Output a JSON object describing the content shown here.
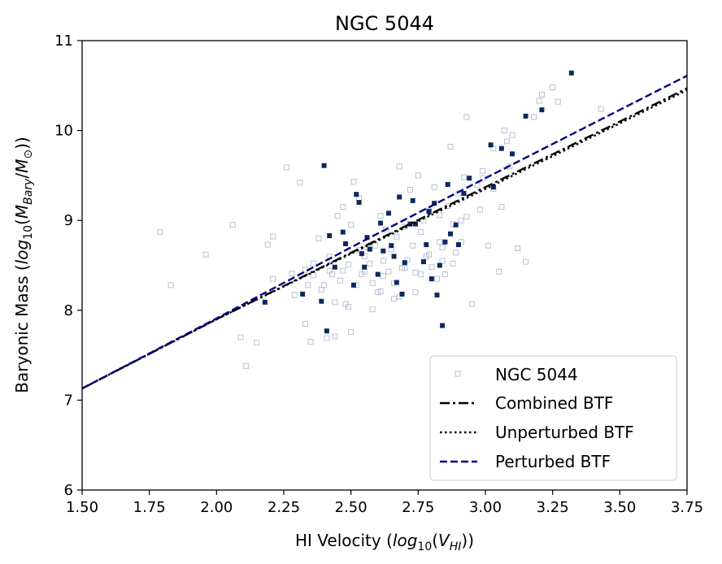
{
  "chart_data": {
    "type": "scatter",
    "title": "NGC 5044",
    "xlabel": "HI Velocity  (",
    "xlabel_math": "log",
    "xlabel_sub": "10",
    "xlabel_var": "V",
    "xlabel_var_sub": "HI",
    "ylabel": "Baryonic Mass (",
    "ylabel_math": "log",
    "ylabel_sub": "10",
    "ylabel_var": "M",
    "ylabel_var_sub": "Bary",
    "ylabel_var2": "M",
    "ylabel_var2_sub": "⊙",
    "xlim": [
      1.5,
      3.75
    ],
    "ylim": [
      6,
      11
    ],
    "xticks": [
      1.5,
      1.75,
      2.0,
      2.25,
      2.5,
      2.75,
      3.0,
      3.25,
      3.5,
      3.75
    ],
    "xtick_labels": [
      "1.50",
      "1.75",
      "2.00",
      "2.25",
      "2.50",
      "2.75",
      "3.00",
      "3.25",
      "3.50",
      "3.75"
    ],
    "yticks": [
      6,
      7,
      8,
      9,
      10,
      11
    ],
    "ytick_labels": [
      "6",
      "7",
      "8",
      "9",
      "10",
      "11"
    ],
    "grid": false,
    "legend_position": "lower-right",
    "legend": [
      {
        "label": "NGC 5044",
        "style": "marker"
      },
      {
        "label": "Combined BTF",
        "style": "dashdot"
      },
      {
        "label": "Unperturbed BTF",
        "style": "dotted"
      },
      {
        "label": "Perturbed BTF",
        "style": "dashed"
      }
    ],
    "colors": {
      "background_points": "#b8c0d4",
      "highlight_points": "#0b2a5e",
      "combined": "#000000",
      "unperturbed": "#000000",
      "perturbed": "#00007f"
    },
    "lines": [
      {
        "name": "Combined BTF",
        "x": [
          1.5,
          2.0,
          2.5,
          3.0,
          3.5,
          3.75
        ],
        "y": [
          7.13,
          7.9,
          8.64,
          9.37,
          10.1,
          10.47
        ]
      },
      {
        "name": "Unperturbed BTF",
        "x": [
          1.5,
          2.0,
          2.5,
          3.0,
          3.5,
          3.75
        ],
        "y": [
          7.13,
          7.9,
          8.63,
          9.35,
          10.08,
          10.45
        ]
      },
      {
        "name": "Perturbed BTF",
        "x": [
          1.5,
          2.0,
          2.5,
          3.0,
          3.5,
          3.75
        ],
        "y": [
          7.13,
          7.91,
          8.7,
          9.47,
          10.23,
          10.61
        ]
      }
    ],
    "series": [
      {
        "name": "NGC 5044 (all)",
        "x": [
          1.79,
          1.83,
          1.96,
          2.06,
          2.09,
          2.11,
          2.15,
          2.19,
          2.21,
          2.26,
          2.29,
          2.31,
          2.33,
          2.35,
          2.36,
          2.38,
          2.39,
          2.41,
          2.42,
          2.43,
          2.44,
          2.45,
          2.46,
          2.47,
          2.48,
          2.49,
          2.5,
          2.51,
          2.52,
          2.53,
          2.54,
          2.55,
          2.56,
          2.57,
          2.58,
          2.59,
          2.6,
          2.61,
          2.62,
          2.63,
          2.64,
          2.65,
          2.66,
          2.67,
          2.68,
          2.69,
          2.7,
          2.71,
          2.72,
          2.73,
          2.74,
          2.75,
          2.76,
          2.77,
          2.78,
          2.79,
          2.8,
          2.81,
          2.82,
          2.83,
          2.84,
          2.85,
          2.86,
          2.87,
          2.88,
          2.89,
          2.9,
          2.91,
          2.92,
          2.93,
          2.95,
          2.97,
          2.99,
          3.01,
          3.03,
          3.05,
          3.07,
          3.09,
          3.1,
          3.12,
          3.15,
          3.18,
          3.2,
          3.21,
          3.25,
          3.27,
          3.43,
          2.33,
          2.36,
          2.4,
          2.44,
          2.47,
          2.5,
          2.53,
          2.58,
          2.62,
          2.66,
          2.7,
          2.74,
          2.79,
          2.83,
          2.88,
          2.93,
          2.98,
          3.03,
          3.08,
          2.21,
          2.28,
          2.34,
          2.42,
          2.49,
          2.55,
          2.61,
          2.68,
          2.76,
          2.84,
          2.91,
          2.99,
          3.06
        ],
        "y": [
          8.87,
          8.28,
          8.62,
          8.95,
          7.7,
          7.38,
          7.64,
          8.73,
          8.35,
          9.59,
          8.17,
          9.42,
          8.45,
          7.65,
          8.52,
          8.8,
          8.23,
          7.69,
          8.6,
          8.4,
          8.09,
          9.05,
          8.33,
          9.15,
          8.07,
          8.51,
          8.95,
          9.43,
          8.28,
          9.25,
          8.4,
          8.6,
          8.7,
          8.52,
          8.3,
          8.72,
          8.2,
          9.05,
          8.55,
          8.9,
          8.43,
          8.68,
          8.3,
          8.82,
          9.6,
          8.47,
          8.93,
          8.56,
          9.34,
          8.72,
          8.42,
          9.5,
          8.87,
          9.0,
          8.6,
          9.11,
          8.48,
          9.37,
          8.35,
          9.06,
          8.7,
          8.4,
          9.16,
          9.82,
          8.96,
          8.64,
          9.3,
          8.76,
          9.48,
          10.15,
          8.07,
          9.39,
          9.55,
          8.72,
          9.8,
          8.43,
          10.0,
          9.6,
          9.95,
          8.69,
          8.54,
          10.15,
          10.33,
          10.4,
          10.48,
          10.32,
          10.24,
          7.85,
          8.39,
          8.28,
          7.71,
          8.44,
          7.76,
          8.67,
          8.01,
          8.38,
          8.13,
          8.47,
          8.2,
          8.62,
          8.76,
          8.52,
          9.04,
          9.12,
          9.35,
          9.88,
          8.82,
          8.41,
          8.28,
          8.44,
          8.04,
          8.43,
          8.21,
          8.15,
          8.4,
          8.55,
          9.0,
          9.47,
          9.15
        ]
      },
      {
        "name": "NGC 5044 (highlighted)",
        "x": [
          2.18,
          2.32,
          2.39,
          2.4,
          2.42,
          2.41,
          2.44,
          2.47,
          2.48,
          2.51,
          2.52,
          2.53,
          2.54,
          2.56,
          2.57,
          2.6,
          2.61,
          2.62,
          2.64,
          2.65,
          2.66,
          2.67,
          2.68,
          2.69,
          2.7,
          2.72,
          2.74,
          2.77,
          2.78,
          2.8,
          2.81,
          2.82,
          2.83,
          2.84,
          2.85,
          2.86,
          2.87,
          2.89,
          2.9,
          2.92,
          2.94,
          3.02,
          3.03,
          3.06,
          3.1,
          3.15,
          3.21,
          3.32,
          2.79,
          2.55,
          2.73
        ],
        "y": [
          8.09,
          8.18,
          8.1,
          9.61,
          8.83,
          7.77,
          8.48,
          8.87,
          8.74,
          8.28,
          9.29,
          9.2,
          8.63,
          8.81,
          8.68,
          8.4,
          8.97,
          8.66,
          9.08,
          8.72,
          8.6,
          8.31,
          9.26,
          8.18,
          8.53,
          8.96,
          8.96,
          8.54,
          8.73,
          8.35,
          9.19,
          8.17,
          8.5,
          7.83,
          8.76,
          9.4,
          8.85,
          8.95,
          8.73,
          9.3,
          9.47,
          9.84,
          9.37,
          9.8,
          9.74,
          10.16,
          10.23,
          10.64,
          9.1,
          8.48,
          9.22
        ]
      }
    ]
  }
}
